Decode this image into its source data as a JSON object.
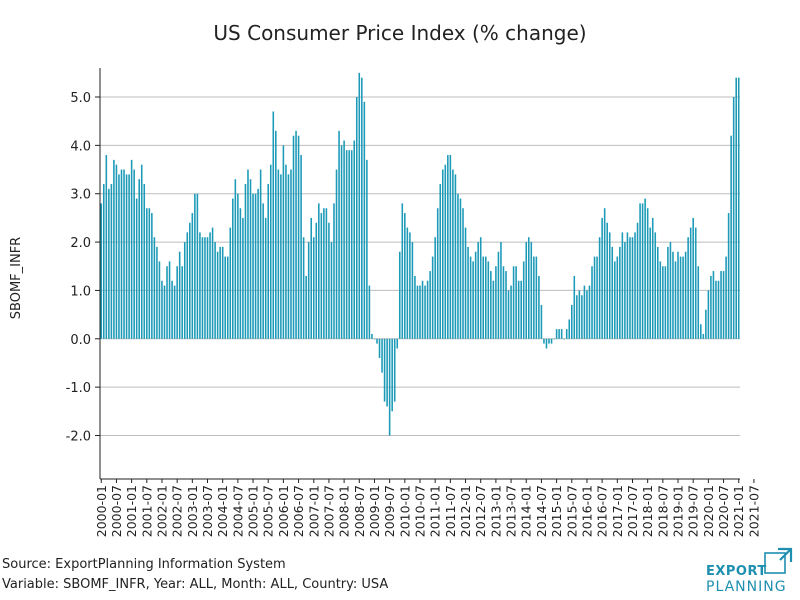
{
  "chart_data": {
    "type": "bar",
    "title": "US Consumer Price Index (% change)",
    "xlabel": "",
    "ylabel": "SBOMF_INFR",
    "ylim": [
      -2.9,
      5.6
    ],
    "y_ticks": [
      -2.0,
      -1.0,
      0.0,
      1.0,
      2.0,
      3.0,
      4.0,
      5.0
    ],
    "y_tick_labels": [
      "-2.0",
      "-1.0",
      "0.0",
      "1.0",
      "2.0",
      "3.0",
      "4.0",
      "5.0"
    ],
    "x_tick_labels": [
      "2000-01",
      "2000-07",
      "2001-01",
      "2001-07",
      "2002-01",
      "2002-07",
      "2003-01",
      "2003-07",
      "2004-01",
      "2004-07",
      "2005-01",
      "2005-07",
      "2006-01",
      "2006-07",
      "2007-01",
      "2007-07",
      "2008-01",
      "2008-07",
      "2009-01",
      "2009-07",
      "2010-01",
      "2010-07",
      "2011-01",
      "2011-07",
      "2012-01",
      "2012-07",
      "2013-01",
      "2013-07",
      "2014-01",
      "2014-07",
      "2015-01",
      "2015-07",
      "2016-01",
      "2016-07",
      "2017-01",
      "2017-07",
      "2018-01",
      "2018-07",
      "2019-01",
      "2019-07",
      "2020-01",
      "2020-07",
      "2021-01",
      "2021-07"
    ],
    "grid": "horizontal",
    "bar_color": "#1c9ab8",
    "series": [
      {
        "start": "2000-01",
        "end": "2021-07",
        "frequency": "monthly",
        "values": [
          2.8,
          3.2,
          3.8,
          3.1,
          3.2,
          3.7,
          3.6,
          3.4,
          3.5,
          3.5,
          3.4,
          3.4,
          3.7,
          3.5,
          2.9,
          3.3,
          3.6,
          3.2,
          2.7,
          2.7,
          2.6,
          2.1,
          1.9,
          1.6,
          1.2,
          1.1,
          1.5,
          1.6,
          1.2,
          1.1,
          1.5,
          1.8,
          1.5,
          2.0,
          2.2,
          2.4,
          2.6,
          3.0,
          3.0,
          2.2,
          2.1,
          2.1,
          2.1,
          2.2,
          2.3,
          2.0,
          1.8,
          1.9,
          1.9,
          1.7,
          1.7,
          2.3,
          2.9,
          3.3,
          3.0,
          2.7,
          2.5,
          3.2,
          3.5,
          3.3,
          3.0,
          3.0,
          3.1,
          3.5,
          2.8,
          2.5,
          3.2,
          3.6,
          4.7,
          4.3,
          3.5,
          3.4,
          4.0,
          3.6,
          3.4,
          3.5,
          4.2,
          4.3,
          4.2,
          3.8,
          2.1,
          1.3,
          2.0,
          2.5,
          2.1,
          2.4,
          2.8,
          2.6,
          2.7,
          2.7,
          2.4,
          2.0,
          2.8,
          3.5,
          4.3,
          4.0,
          4.1,
          3.9,
          3.9,
          3.9,
          4.1,
          5.0,
          5.5,
          5.4,
          4.9,
          3.7,
          1.1,
          0.1,
          0.0,
          -0.1,
          -0.4,
          -0.7,
          -1.3,
          -1.4,
          -2.0,
          -1.5,
          -1.3,
          -0.2,
          1.8,
          2.8,
          2.6,
          2.3,
          2.2,
          2.0,
          1.3,
          1.1,
          1.1,
          1.2,
          1.1,
          1.2,
          1.4,
          1.7,
          2.1,
          2.7,
          3.2,
          3.5,
          3.6,
          3.8,
          3.8,
          3.5,
          3.4,
          3.0,
          2.9,
          2.7,
          2.3,
          1.9,
          1.7,
          1.6,
          1.8,
          2.0,
          2.1,
          1.7,
          1.7,
          1.6,
          1.4,
          1.2,
          1.5,
          1.8,
          2.0,
          1.5,
          1.4,
          1.0,
          1.1,
          1.5,
          1.5,
          1.2,
          1.2,
          1.6,
          2.0,
          2.1,
          2.0,
          1.7,
          1.7,
          1.3,
          0.7,
          -0.1,
          -0.2,
          -0.1,
          -0.1,
          0.0,
          0.2,
          0.2,
          0.2,
          0.0,
          0.2,
          0.4,
          0.7,
          1.3,
          0.9,
          1.0,
          0.9,
          1.1,
          1.0,
          1.1,
          1.5,
          1.7,
          1.7,
          2.1,
          2.5,
          2.7,
          2.4,
          2.2,
          1.9,
          1.6,
          1.7,
          1.9,
          2.2,
          2.0,
          2.2,
          2.1,
          2.1,
          2.2,
          2.4,
          2.8,
          2.8,
          2.9,
          2.7,
          2.3,
          2.5,
          2.2,
          1.9,
          1.6,
          1.5,
          1.5,
          1.9,
          2.0,
          1.8,
          1.6,
          1.8,
          1.7,
          1.7,
          1.8,
          2.1,
          2.3,
          2.5,
          2.3,
          1.5,
          0.3,
          0.1,
          0.6,
          1.0,
          1.3,
          1.4,
          1.2,
          1.2,
          1.4,
          1.4,
          1.7,
          2.6,
          4.2,
          5.0,
          5.4,
          5.4
        ]
      }
    ]
  },
  "source": {
    "line1": "Source: ExportPlanning Information System",
    "line2": "Variable: SBOMF_INFR, Year: ALL, Month: ALL, Country: USA"
  },
  "logo": {
    "top": "EXPORT",
    "bottom": "PLANNING",
    "color": "#1f8fb0"
  }
}
